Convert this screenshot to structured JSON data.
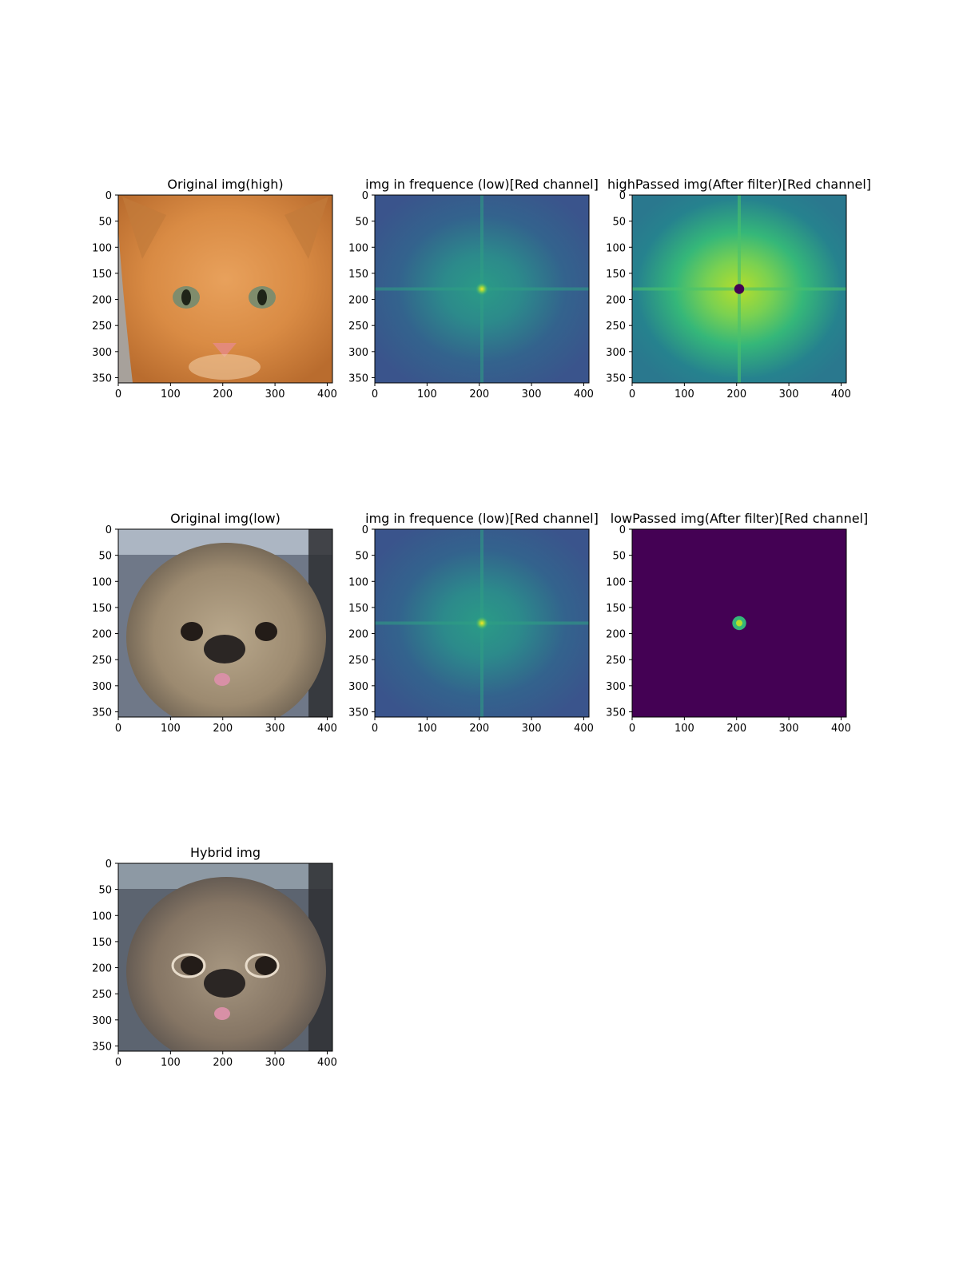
{
  "figure": {
    "panels": [
      {
        "id": "orig-high",
        "title": "Original img(high)",
        "kind": "cat"
      },
      {
        "id": "freq-high",
        "title": "img in frequence (low)[Red channel]",
        "kind": "spectrum"
      },
      {
        "id": "highpass",
        "title": "highPassed img(After filter)[Red channel]",
        "kind": "highpass"
      },
      {
        "id": "orig-low",
        "title": "Original img(low)",
        "kind": "dog"
      },
      {
        "id": "freq-low",
        "title": "img in frequence (low)[Red channel]",
        "kind": "spectrum"
      },
      {
        "id": "lowpass",
        "title": "lowPassed img(After filter)[Red channel]",
        "kind": "lowpass"
      },
      {
        "id": "hybrid",
        "title": "Hybrid img",
        "kind": "hybrid"
      }
    ]
  },
  "chart_data": [
    {
      "type": "heatmap",
      "title": "Original img(high)",
      "xlim": [
        0,
        410
      ],
      "ylim": [
        360,
        0
      ],
      "xticks": [
        0,
        100,
        200,
        300,
        400
      ],
      "yticks": [
        0,
        50,
        100,
        150,
        200,
        250,
        300,
        350
      ]
    },
    {
      "type": "heatmap",
      "title": "img in frequence (low)[Red channel]",
      "xlim": [
        0,
        410
      ],
      "ylim": [
        360,
        0
      ],
      "xticks": [
        0,
        100,
        200,
        300,
        400
      ],
      "yticks": [
        0,
        50,
        100,
        150,
        200,
        250,
        300,
        350
      ],
      "center": [
        205,
        180
      ],
      "colormap": "viridis"
    },
    {
      "type": "heatmap",
      "title": "highPassed img(After filter)[Red channel]",
      "xlim": [
        0,
        410
      ],
      "ylim": [
        360,
        0
      ],
      "xticks": [
        0,
        100,
        200,
        300,
        400
      ],
      "yticks": [
        0,
        50,
        100,
        150,
        200,
        250,
        300,
        350
      ],
      "center": [
        205,
        180
      ],
      "filter_radius": 10,
      "colormap": "viridis"
    },
    {
      "type": "heatmap",
      "title": "Original img(low)",
      "xlim": [
        0,
        410
      ],
      "ylim": [
        360,
        0
      ],
      "xticks": [
        0,
        100,
        200,
        300,
        400
      ],
      "yticks": [
        0,
        50,
        100,
        150,
        200,
        250,
        300,
        350
      ]
    },
    {
      "type": "heatmap",
      "title": "img in frequence (low)[Red channel]",
      "xlim": [
        0,
        410
      ],
      "ylim": [
        360,
        0
      ],
      "xticks": [
        0,
        100,
        200,
        300,
        400
      ],
      "yticks": [
        0,
        50,
        100,
        150,
        200,
        250,
        300,
        350
      ],
      "center": [
        205,
        180
      ],
      "colormap": "viridis"
    },
    {
      "type": "heatmap",
      "title": "lowPassed img(After filter)[Red channel]",
      "xlim": [
        0,
        410
      ],
      "ylim": [
        360,
        0
      ],
      "xticks": [
        0,
        100,
        200,
        300,
        400
      ],
      "yticks": [
        0,
        50,
        100,
        150,
        200,
        250,
        300,
        350
      ],
      "center": [
        205,
        180
      ],
      "filter_radius": 14,
      "colormap": "viridis"
    },
    {
      "type": "heatmap",
      "title": "Hybrid img",
      "xlim": [
        0,
        410
      ],
      "ylim": [
        360,
        0
      ],
      "xticks": [
        0,
        100,
        200,
        300,
        400
      ],
      "yticks": [
        0,
        50,
        100,
        150,
        200,
        250,
        300,
        350
      ]
    }
  ]
}
